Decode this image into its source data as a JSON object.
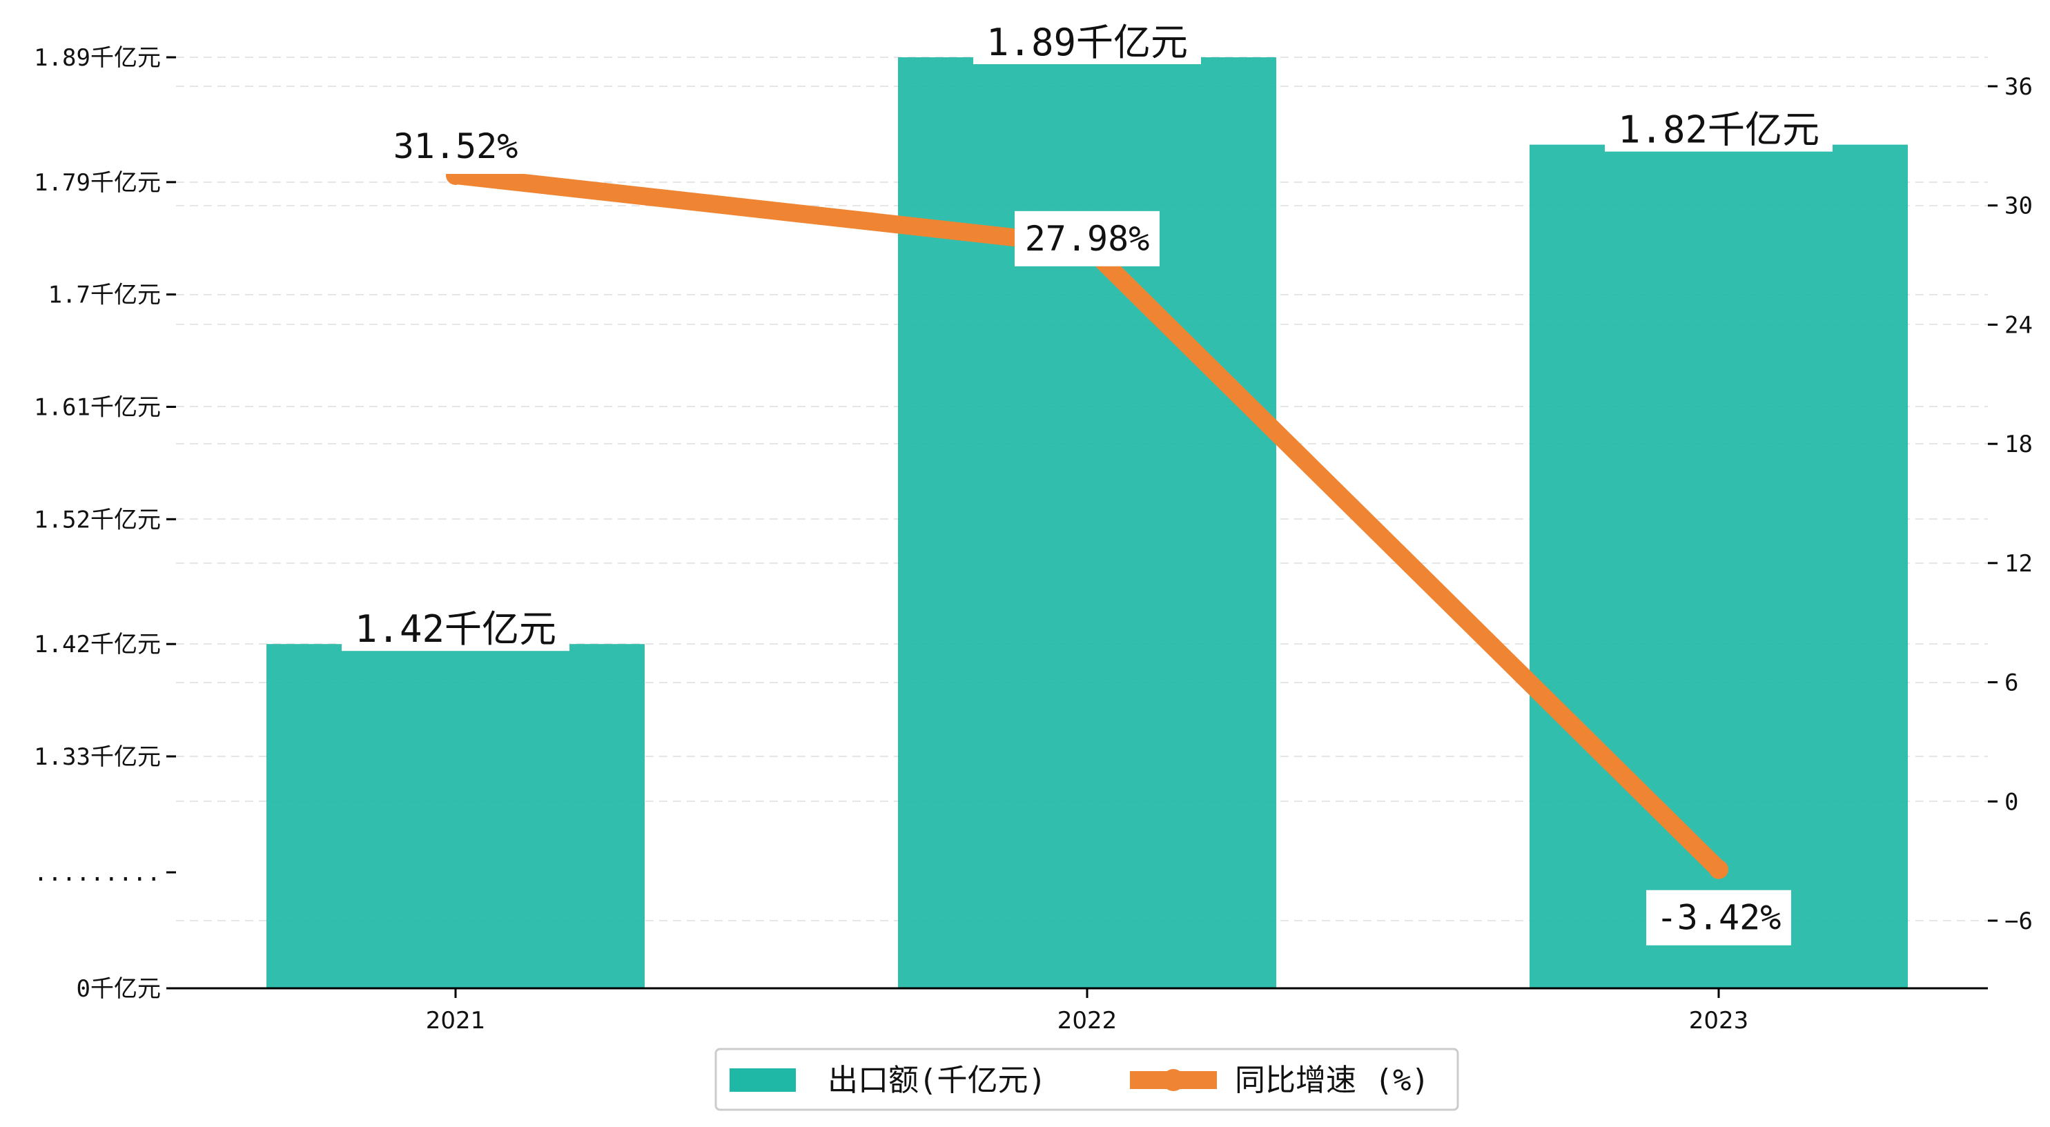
{
  "chart_data": {
    "type": "bar",
    "categories": [
      "2021",
      "2022",
      "2023"
    ],
    "series": [
      {
        "name": "出口额(千亿元)",
        "type": "bar",
        "axis": "left",
        "values": [
          1.42,
          1.89,
          1.82
        ],
        "labels": [
          "1.42千亿元",
          "1.89千亿元",
          "1.82千亿元"
        ],
        "color": "#1fb8a6"
      },
      {
        "name": "同比增速 (%)",
        "type": "line",
        "axis": "right",
        "values": [
          31.52,
          27.98,
          -3.42
        ],
        "labels": [
          "31.52%",
          "27.98%",
          "-3.42%"
        ],
        "color": "#ef8533"
      }
    ],
    "left_axis": {
      "ticks": [
        {
          "label": "0千亿元",
          "value": 0
        },
        {
          "label": ".........",
          "value": null
        },
        {
          "label": "1.33千亿元",
          "value": 1.33
        },
        {
          "label": "1.42千亿元",
          "value": 1.42
        },
        {
          "label": "1.52千亿元",
          "value": 1.52
        },
        {
          "label": "1.61千亿元",
          "value": 1.61
        },
        {
          "label": "1.7千亿元",
          "value": 1.7
        },
        {
          "label": "1.79千亿元",
          "value": 1.79
        },
        {
          "label": "1.89千亿元",
          "value": 1.89
        }
      ],
      "broken": true
    },
    "right_axis": {
      "ticks": [
        -6,
        0,
        6,
        12,
        18,
        24,
        30,
        36
      ],
      "range": [
        -9.4,
        38.0
      ]
    },
    "legend": {
      "position": "bottom-center"
    },
    "grid": "horizontal-dashed",
    "title": "",
    "xlabel": "",
    "ylabel": ""
  }
}
